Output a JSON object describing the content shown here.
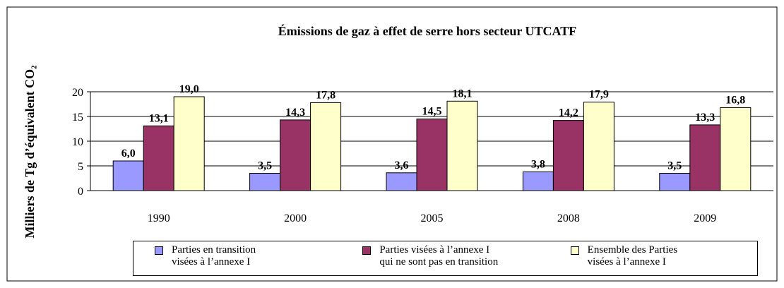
{
  "chart_data": {
    "type": "bar",
    "title": "Émissions de gaz à effet de serre hors secteur UTCATF",
    "y_label": "Milliers de Tg d’équivalent CO₂",
    "categories": [
      "1990",
      "2000",
      "2005",
      "2008",
      "2009"
    ],
    "series": [
      {
        "name": "Parties en transition\nvisées à l’annexe I",
        "color": "#9999ff",
        "values": [
          6.0,
          3.5,
          3.6,
          3.8,
          3.5
        ],
        "value_labels": [
          "6,0",
          "3,5",
          "3,6",
          "3,8",
          "3,5"
        ]
      },
      {
        "name": "Parties visées à l’annexe I\nqui ne sont pas en transition",
        "color": "#993366",
        "values": [
          13.1,
          14.3,
          14.5,
          14.2,
          13.3
        ],
        "value_labels": [
          "13,1",
          "14,3",
          "14,5",
          "14,2",
          "13,3"
        ]
      },
      {
        "name": "Ensemble des Parties\nvisées à l’annexe I",
        "color": "#ffffcc",
        "values": [
          19.0,
          17.8,
          18.1,
          17.9,
          16.8
        ],
        "value_labels": [
          "19,0",
          "17,8",
          "18,1",
          "17,9",
          "16,8"
        ]
      }
    ],
    "ylim": [
      0,
      20
    ],
    "yticks": [
      0,
      5,
      10,
      15,
      20
    ],
    "grid": true,
    "legend": "bottom"
  }
}
